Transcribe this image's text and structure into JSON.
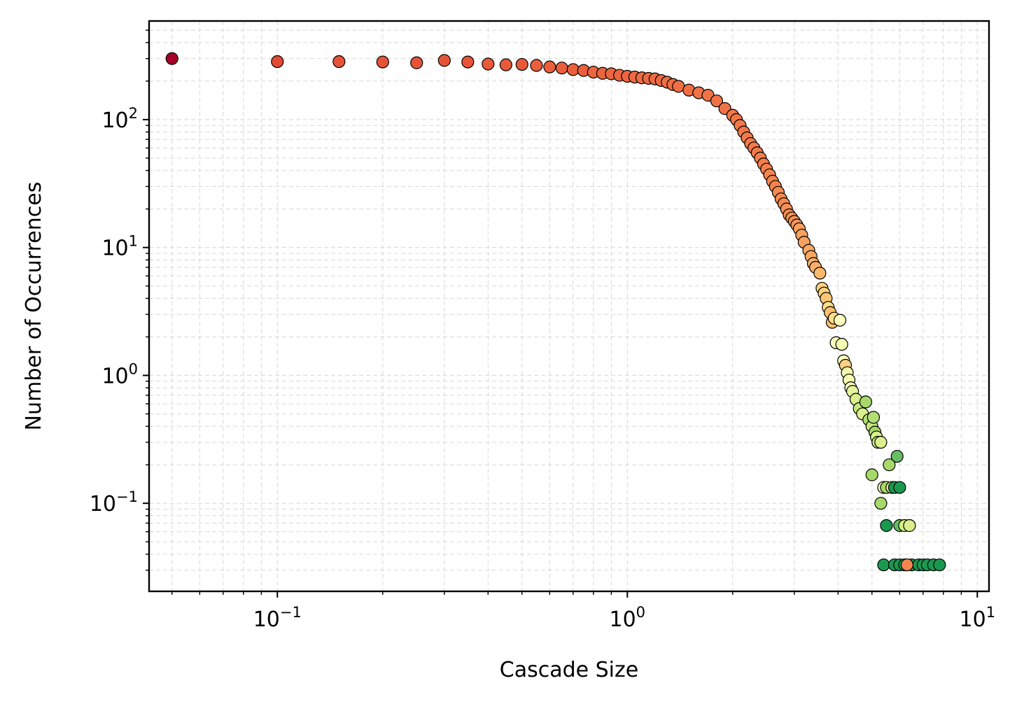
{
  "chart_data": {
    "type": "scatter",
    "title": "",
    "xlabel": "Cascade Size",
    "ylabel": "Number of Occurrences",
    "xscale": "log",
    "yscale": "log",
    "xlim": [
      0.043,
      10.8
    ],
    "ylim": [
      0.0205,
      590
    ],
    "grid": true,
    "legend": "none",
    "colormap": "RdYlGn",
    "marker_edge_color": "#000000",
    "x_tick_labels": [
      {
        "value": 0.1,
        "base": "10",
        "exp": "−1"
      },
      {
        "value": 1,
        "base": "10",
        "exp": "0"
      },
      {
        "value": 10,
        "base": "10",
        "exp": "1"
      }
    ],
    "y_tick_labels": [
      {
        "value": 0.1,
        "base": "10",
        "exp": "−1"
      },
      {
        "value": 1,
        "base": "10",
        "exp": "0"
      },
      {
        "value": 10,
        "base": "10",
        "exp": "1"
      },
      {
        "value": 100,
        "base": "10",
        "exp": "2"
      }
    ],
    "points": [
      {
        "x": 0.05,
        "y": 300,
        "color": "#a50026"
      },
      {
        "x": 0.1,
        "y": 284,
        "color": "#e34a33"
      },
      {
        "x": 0.15,
        "y": 284,
        "color": "#e65438"
      },
      {
        "x": 0.2,
        "y": 282,
        "color": "#e65438"
      },
      {
        "x": 0.25,
        "y": 278,
        "color": "#e65438"
      },
      {
        "x": 0.3,
        "y": 290,
        "color": "#e65438"
      },
      {
        "x": 0.35,
        "y": 282,
        "color": "#e65438"
      },
      {
        "x": 0.4,
        "y": 272,
        "color": "#e85b3a"
      },
      {
        "x": 0.45,
        "y": 268,
        "color": "#e85b3a"
      },
      {
        "x": 0.5,
        "y": 270,
        "color": "#e85b3a"
      },
      {
        "x": 0.55,
        "y": 265,
        "color": "#ea603c"
      },
      {
        "x": 0.6,
        "y": 258,
        "color": "#ea603c"
      },
      {
        "x": 0.65,
        "y": 253,
        "color": "#ea603c"
      },
      {
        "x": 0.7,
        "y": 246,
        "color": "#ea603c"
      },
      {
        "x": 0.75,
        "y": 242,
        "color": "#ea603c"
      },
      {
        "x": 0.8,
        "y": 235,
        "color": "#ec653f"
      },
      {
        "x": 0.85,
        "y": 230,
        "color": "#ec653f"
      },
      {
        "x": 0.9,
        "y": 228,
        "color": "#ec653f"
      },
      {
        "x": 0.95,
        "y": 222,
        "color": "#ec653f"
      },
      {
        "x": 1.0,
        "y": 218,
        "color": "#ec653f"
      },
      {
        "x": 1.05,
        "y": 215,
        "color": "#ee6a42"
      },
      {
        "x": 1.1,
        "y": 212,
        "color": "#ee6a42"
      },
      {
        "x": 1.15,
        "y": 210,
        "color": "#ee6a42"
      },
      {
        "x": 1.2,
        "y": 208,
        "color": "#ee6a42"
      },
      {
        "x": 1.25,
        "y": 202,
        "color": "#ee6a42"
      },
      {
        "x": 1.3,
        "y": 196,
        "color": "#ef6e44"
      },
      {
        "x": 1.35,
        "y": 188,
        "color": "#ef6e44"
      },
      {
        "x": 1.4,
        "y": 182,
        "color": "#ef6e44"
      },
      {
        "x": 1.5,
        "y": 170,
        "color": "#ef6e44"
      },
      {
        "x": 1.6,
        "y": 162,
        "color": "#f07346"
      },
      {
        "x": 1.7,
        "y": 155,
        "color": "#f07346"
      },
      {
        "x": 1.8,
        "y": 140,
        "color": "#f07346"
      },
      {
        "x": 1.9,
        "y": 122,
        "color": "#f07346"
      },
      {
        "x": 2.0,
        "y": 108,
        "color": "#f17848"
      },
      {
        "x": 2.05,
        "y": 100,
        "color": "#f17848"
      },
      {
        "x": 2.1,
        "y": 90,
        "color": "#f17848"
      },
      {
        "x": 2.15,
        "y": 80,
        "color": "#f17848"
      },
      {
        "x": 2.2,
        "y": 72,
        "color": "#f27c4a"
      },
      {
        "x": 2.25,
        "y": 65,
        "color": "#f27c4a"
      },
      {
        "x": 2.3,
        "y": 60,
        "color": "#f27c4a"
      },
      {
        "x": 2.35,
        "y": 55,
        "color": "#f27c4a"
      },
      {
        "x": 2.4,
        "y": 50,
        "color": "#f3804c"
      },
      {
        "x": 2.45,
        "y": 45,
        "color": "#f3804c"
      },
      {
        "x": 2.5,
        "y": 41,
        "color": "#f3804c"
      },
      {
        "x": 2.55,
        "y": 37,
        "color": "#f4854e"
      },
      {
        "x": 2.6,
        "y": 33,
        "color": "#f4854e"
      },
      {
        "x": 2.65,
        "y": 30,
        "color": "#f4854e"
      },
      {
        "x": 2.7,
        "y": 27,
        "color": "#f58a51"
      },
      {
        "x": 2.75,
        "y": 24,
        "color": "#f58a51"
      },
      {
        "x": 2.8,
        "y": 22,
        "color": "#f58a51"
      },
      {
        "x": 2.85,
        "y": 20,
        "color": "#f58f54"
      },
      {
        "x": 2.9,
        "y": 18,
        "color": "#f58f54"
      },
      {
        "x": 2.95,
        "y": 17,
        "color": "#f69457"
      },
      {
        "x": 3.0,
        "y": 16,
        "color": "#f69457"
      },
      {
        "x": 3.05,
        "y": 15,
        "color": "#f69457"
      },
      {
        "x": 3.1,
        "y": 14,
        "color": "#f8a05f"
      },
      {
        "x": 3.15,
        "y": 12.5,
        "color": "#f8a05f"
      },
      {
        "x": 3.2,
        "y": 11,
        "color": "#f8a05f"
      },
      {
        "x": 3.3,
        "y": 9.5,
        "color": "#f9a964"
      },
      {
        "x": 3.35,
        "y": 8.5,
        "color": "#f9a964"
      },
      {
        "x": 3.4,
        "y": 7.5,
        "color": "#faaf6a"
      },
      {
        "x": 3.45,
        "y": 7,
        "color": "#faaf6a"
      },
      {
        "x": 3.55,
        "y": 6.3,
        "color": "#fbb86f"
      },
      {
        "x": 3.6,
        "y": 4.8,
        "color": "#fdd17f"
      },
      {
        "x": 3.65,
        "y": 4.4,
        "color": "#fdd17f"
      },
      {
        "x": 3.7,
        "y": 4.0,
        "color": "#fdc674"
      },
      {
        "x": 3.75,
        "y": 3.4,
        "color": "#fee08b"
      },
      {
        "x": 3.8,
        "y": 3.1,
        "color": "#fdbf6f"
      },
      {
        "x": 3.85,
        "y": 2.6,
        "color": "#fdbf6f"
      },
      {
        "x": 3.9,
        "y": 2.8,
        "color": "#fee08b"
      },
      {
        "x": 4.05,
        "y": 2.7,
        "color": "#ffffbf"
      },
      {
        "x": 3.95,
        "y": 1.8,
        "color": "#ffffbf"
      },
      {
        "x": 4.1,
        "y": 1.75,
        "color": "#f7fcb4"
      },
      {
        "x": 4.15,
        "y": 1.3,
        "color": "#ffffbf"
      },
      {
        "x": 4.2,
        "y": 1.2,
        "color": "#fdd17f"
      },
      {
        "x": 4.25,
        "y": 1.05,
        "color": "#f4fab0"
      },
      {
        "x": 4.3,
        "y": 0.92,
        "color": "#f7fcb4"
      },
      {
        "x": 4.35,
        "y": 0.8,
        "color": "#ffffbf"
      },
      {
        "x": 4.4,
        "y": 0.75,
        "color": "#e6f59d"
      },
      {
        "x": 4.5,
        "y": 0.65,
        "color": "#d9ef8b"
      },
      {
        "x": 4.6,
        "y": 0.55,
        "color": "#c5e67e"
      },
      {
        "x": 4.7,
        "y": 0.5,
        "color": "#d9ef8b"
      },
      {
        "x": 4.8,
        "y": 0.62,
        "color": "#a6d96a"
      },
      {
        "x": 4.9,
        "y": 0.45,
        "color": "#b3df72"
      },
      {
        "x": 5.0,
        "y": 0.4,
        "color": "#c5e67e"
      },
      {
        "x": 5.05,
        "y": 0.47,
        "color": "#b3df72"
      },
      {
        "x": 5.1,
        "y": 0.36,
        "color": "#a6d96a"
      },
      {
        "x": 5.15,
        "y": 0.33,
        "color": "#d9ef8b"
      },
      {
        "x": 5.2,
        "y": 0.3,
        "color": "#c5e67e"
      },
      {
        "x": 5.3,
        "y": 0.3,
        "color": "#d9ef8b"
      },
      {
        "x": 5.0,
        "y": 0.167,
        "color": "#a6d96a"
      },
      {
        "x": 5.4,
        "y": 0.133,
        "color": "#ffffbf"
      },
      {
        "x": 5.5,
        "y": 0.133,
        "color": "#a6d96a"
      },
      {
        "x": 5.6,
        "y": 0.2,
        "color": "#a6d96a"
      },
      {
        "x": 5.7,
        "y": 0.133,
        "color": "#d9ef8b"
      },
      {
        "x": 5.8,
        "y": 0.133,
        "color": "#1a9850"
      },
      {
        "x": 5.9,
        "y": 0.233,
        "color": "#66bd63"
      },
      {
        "x": 6.0,
        "y": 0.133,
        "color": "#1a9850"
      },
      {
        "x": 5.3,
        "y": 0.1,
        "color": "#a6d96a"
      },
      {
        "x": 5.5,
        "y": 0.067,
        "color": "#1a9850"
      },
      {
        "x": 6.0,
        "y": 0.067,
        "color": "#66bd63"
      },
      {
        "x": 6.2,
        "y": 0.067,
        "color": "#d9ef8b"
      },
      {
        "x": 6.4,
        "y": 0.067,
        "color": "#d9ef8b"
      },
      {
        "x": 5.4,
        "y": 0.033,
        "color": "#1a9850"
      },
      {
        "x": 5.8,
        "y": 0.033,
        "color": "#1a9850"
      },
      {
        "x": 6.0,
        "y": 0.033,
        "color": "#1a9850"
      },
      {
        "x": 6.2,
        "y": 0.033,
        "color": "#1a9850"
      },
      {
        "x": 6.5,
        "y": 0.033,
        "color": "#1a9850"
      },
      {
        "x": 6.8,
        "y": 0.033,
        "color": "#1a9850"
      },
      {
        "x": 7.0,
        "y": 0.033,
        "color": "#1a9850"
      },
      {
        "x": 7.2,
        "y": 0.033,
        "color": "#1a9850"
      },
      {
        "x": 7.5,
        "y": 0.033,
        "color": "#1a9850"
      },
      {
        "x": 7.8,
        "y": 0.033,
        "color": "#1a9850"
      },
      {
        "x": 6.3,
        "y": 0.033,
        "color": "#f4854e"
      }
    ]
  }
}
